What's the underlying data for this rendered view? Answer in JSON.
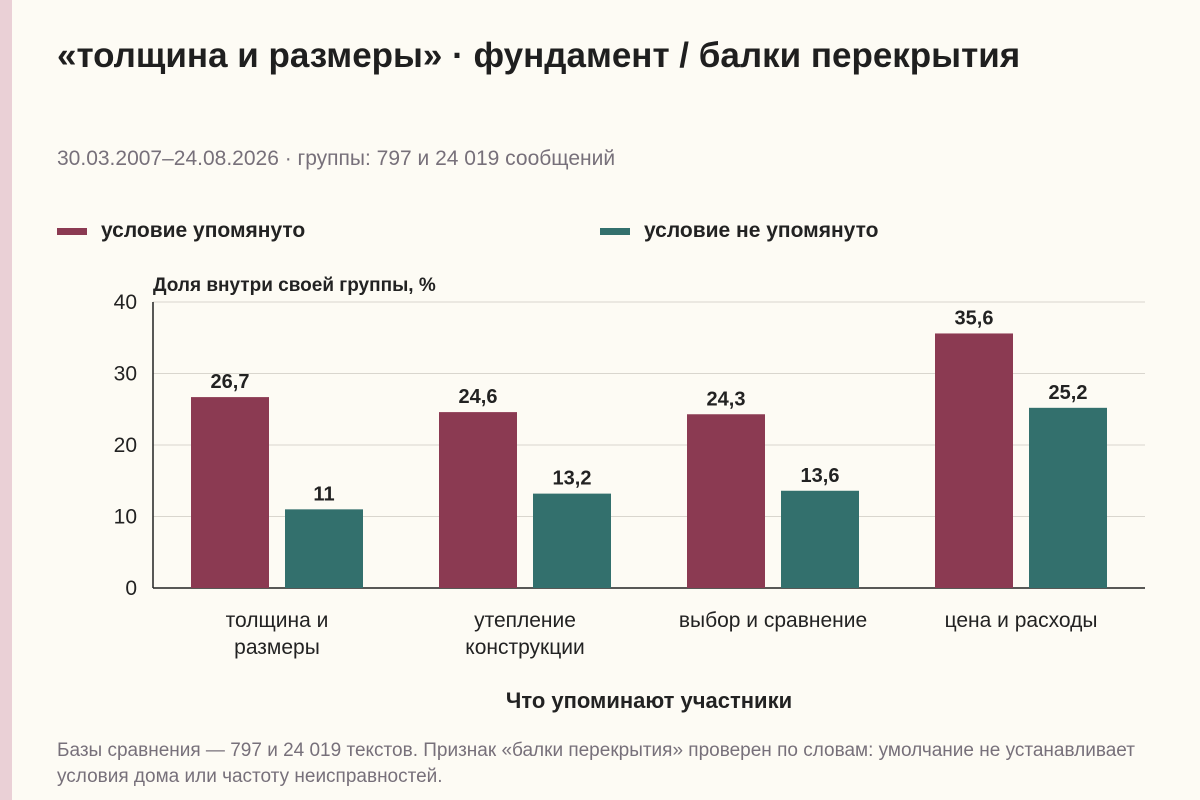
{
  "page": {
    "title": "«толщина и размеры» · фундамент / балки перекрытия",
    "subtitle": "30.03.2007–24.08.2026 · группы: 797 и 24 019 сообщений",
    "footnote": "Базы сравнения — 797 и 24 019 текстов. Признак «балки перекрытия» проверен по словам: умолчание не устанавливает условия дома или частоту неисправностей."
  },
  "colors": {
    "series1": "#8b3a52",
    "series2": "#33706d",
    "grid": "#d9d6ce",
    "axis": "#222222"
  },
  "chart_data": {
    "type": "bar",
    "ylabel": "Доля внутри своей группы, %",
    "xlabel": "Что упоминают участники",
    "ylim": [
      0,
      40
    ],
    "yticks": [
      0,
      10,
      20,
      30,
      40
    ],
    "grid": true,
    "legend_position": "top",
    "categories": [
      [
        "толщина и",
        "размеры"
      ],
      [
        "утепление",
        "конструкции"
      ],
      [
        "выбор и сравнение"
      ],
      [
        "цена и расходы"
      ]
    ],
    "series": [
      {
        "name": "условие упомянуто",
        "values": [
          26.7,
          24.6,
          24.3,
          35.6
        ],
        "labels": [
          "26,7",
          "24,6",
          "24,3",
          "35,6"
        ],
        "color": "#8b3a52"
      },
      {
        "name": "условие не упомянуто",
        "values": [
          11,
          13.2,
          13.6,
          25.2
        ],
        "labels": [
          "11",
          "13,2",
          "13,6",
          "25,2"
        ],
        "color": "#33706d"
      }
    ]
  }
}
